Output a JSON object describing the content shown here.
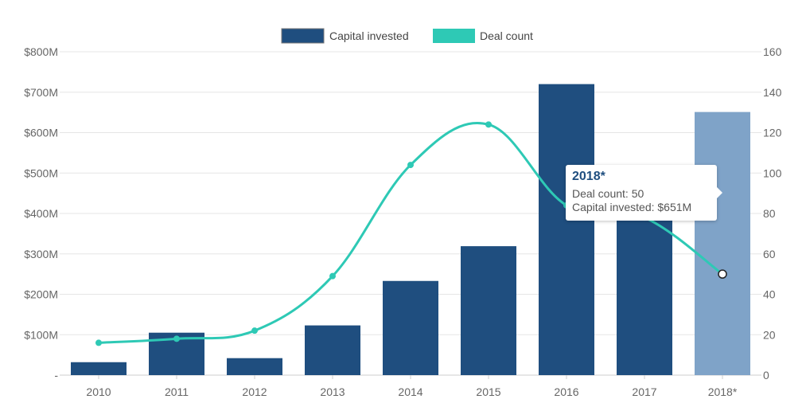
{
  "chart_data": {
    "type": "bar",
    "categories": [
      "2010",
      "2011",
      "2012",
      "2013",
      "2014",
      "2015",
      "2016",
      "2017",
      "2018*"
    ],
    "series": [
      {
        "name": "Capital invested",
        "type": "bar",
        "axis": "left",
        "values": [
          32,
          105,
          42,
          123,
          233,
          319,
          720,
          432,
          651
        ],
        "color": "#1f4e7f",
        "highlight_color": "#7fa3c8",
        "highlight_index": 8
      },
      {
        "name": "Deal count",
        "type": "line",
        "axis": "right",
        "values": [
          16,
          18,
          22,
          49,
          104,
          124,
          84,
          78,
          50
        ],
        "color": "#2ec9b5"
      }
    ],
    "y_left": {
      "min": 0,
      "max": 800,
      "ticks": [
        {
          "value": 0,
          "label": "-"
        },
        {
          "value": 100,
          "label": "$100M"
        },
        {
          "value": 200,
          "label": "$200M"
        },
        {
          "value": 300,
          "label": "$300M"
        },
        {
          "value": 400,
          "label": "$400M"
        },
        {
          "value": 500,
          "label": "$500M"
        },
        {
          "value": 600,
          "label": "$600M"
        },
        {
          "value": 700,
          "label": "$700M"
        },
        {
          "value": 800,
          "label": "$800M"
        }
      ]
    },
    "y_right": {
      "min": 0,
      "max": 160,
      "ticks": [
        0,
        20,
        40,
        60,
        80,
        100,
        120,
        140,
        160
      ]
    },
    "grid": true,
    "legend_position": "top-center",
    "tooltip": {
      "title": "2018*",
      "lines": [
        "Deal count: 50",
        "Capital invested: $651M"
      ],
      "category_index": 8
    }
  }
}
